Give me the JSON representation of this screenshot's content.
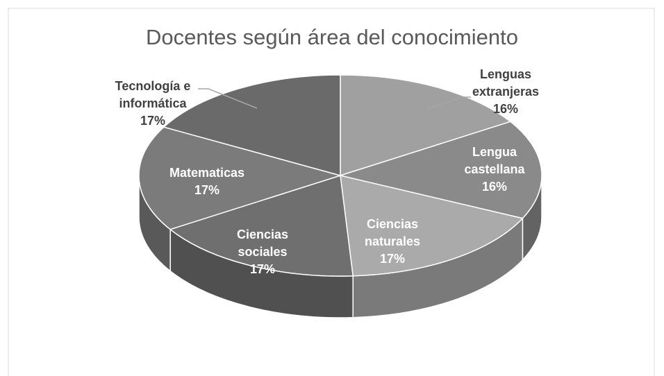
{
  "chart_data": {
    "type": "pie",
    "title": "Docentes según área del conocimiento",
    "categories": [
      "Lenguas extranjeras",
      "Lengua castellana",
      "Ciencias naturales",
      "Ciencias sociales",
      "Matematicas",
      "Tecnología e informática"
    ],
    "values": [
      16,
      16,
      17,
      17,
      17,
      17
    ],
    "value_labels": [
      "16%",
      "16%",
      "17%",
      "17%",
      "17%",
      "17%"
    ],
    "colors": [
      "#a0a0a0",
      "#8a8a8a",
      "#aaaaaa",
      "#6f6f6f",
      "#7b7b7b",
      "#6a6a6a"
    ]
  }
}
